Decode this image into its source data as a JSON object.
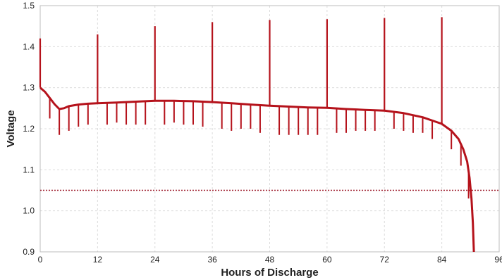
{
  "chart_data": {
    "type": "line",
    "title": "",
    "xlabel": "Hours of Discharge",
    "ylabel": "Voltage",
    "xlim": [
      0,
      96
    ],
    "ylim": [
      0.9,
      1.5
    ],
    "x_ticks": [
      0,
      12,
      24,
      36,
      48,
      60,
      72,
      84,
      96
    ],
    "x_tick_labels": [
      "0",
      "12",
      "24",
      "36",
      "48",
      "60",
      "72",
      "84",
      "96"
    ],
    "y_ticks": [
      0.9,
      1.0,
      1.1,
      1.2,
      1.3,
      1.4,
      1.5
    ],
    "y_tick_labels": [
      "0.9",
      "1.0",
      "1.1",
      "1.2",
      "1.3",
      "1.4",
      "1.5"
    ],
    "grid": true,
    "series_color": "#b5121b",
    "cutoff_color": "#9e1b2b",
    "baseline_points": [
      [
        0,
        1.3
      ],
      [
        1,
        1.29
      ],
      [
        2,
        1.275
      ],
      [
        3,
        1.26
      ],
      [
        4,
        1.248
      ],
      [
        5,
        1.25
      ],
      [
        6,
        1.255
      ],
      [
        8,
        1.259
      ],
      [
        10,
        1.261
      ],
      [
        12,
        1.262
      ],
      [
        16,
        1.264
      ],
      [
        20,
        1.266
      ],
      [
        24,
        1.268
      ],
      [
        28,
        1.268
      ],
      [
        32,
        1.267
      ],
      [
        36,
        1.265
      ],
      [
        40,
        1.262
      ],
      [
        44,
        1.259
      ],
      [
        48,
        1.256
      ],
      [
        52,
        1.254
      ],
      [
        56,
        1.252
      ],
      [
        60,
        1.251
      ],
      [
        64,
        1.248
      ],
      [
        68,
        1.246
      ],
      [
        72,
        1.244
      ],
      [
        76,
        1.238
      ],
      [
        80,
        1.228
      ],
      [
        84,
        1.212
      ],
      [
        86,
        1.195
      ],
      [
        87.5,
        1.175
      ],
      [
        88.5,
        1.15
      ],
      [
        89.3,
        1.12
      ],
      [
        89.8,
        1.08
      ],
      [
        90.2,
        1.03
      ],
      [
        90.5,
        0.97
      ],
      [
        90.7,
        0.9
      ]
    ],
    "high_spikes": [
      {
        "x": 0,
        "y": 1.42
      },
      {
        "x": 12,
        "y": 1.43
      },
      {
        "x": 24,
        "y": 1.45
      },
      {
        "x": 36,
        "y": 1.46
      },
      {
        "x": 48,
        "y": 1.465
      },
      {
        "x": 60,
        "y": 1.467
      },
      {
        "x": 72,
        "y": 1.47
      },
      {
        "x": 84,
        "y": 1.472
      }
    ],
    "low_dips": [
      {
        "x": 2,
        "y": 1.225
      },
      {
        "x": 4,
        "y": 1.185
      },
      {
        "x": 6,
        "y": 1.195
      },
      {
        "x": 8,
        "y": 1.205
      },
      {
        "x": 10,
        "y": 1.21
      },
      {
        "x": 14,
        "y": 1.21
      },
      {
        "x": 16,
        "y": 1.215
      },
      {
        "x": 18,
        "y": 1.21
      },
      {
        "x": 20,
        "y": 1.21
      },
      {
        "x": 22,
        "y": 1.21
      },
      {
        "x": 26,
        "y": 1.21
      },
      {
        "x": 28,
        "y": 1.215
      },
      {
        "x": 30,
        "y": 1.21
      },
      {
        "x": 32,
        "y": 1.21
      },
      {
        "x": 34,
        "y": 1.205
      },
      {
        "x": 38,
        "y": 1.2
      },
      {
        "x": 40,
        "y": 1.195
      },
      {
        "x": 42,
        "y": 1.2
      },
      {
        "x": 44,
        "y": 1.2
      },
      {
        "x": 46,
        "y": 1.19
      },
      {
        "x": 50,
        "y": 1.185
      },
      {
        "x": 52,
        "y": 1.185
      },
      {
        "x": 54,
        "y": 1.185
      },
      {
        "x": 56,
        "y": 1.185
      },
      {
        "x": 58,
        "y": 1.185
      },
      {
        "x": 62,
        "y": 1.19
      },
      {
        "x": 64,
        "y": 1.19
      },
      {
        "x": 66,
        "y": 1.195
      },
      {
        "x": 68,
        "y": 1.195
      },
      {
        "x": 70,
        "y": 1.195
      },
      {
        "x": 74,
        "y": 1.2
      },
      {
        "x": 76,
        "y": 1.195
      },
      {
        "x": 78,
        "y": 1.19
      },
      {
        "x": 80,
        "y": 1.19
      },
      {
        "x": 82,
        "y": 1.175
      },
      {
        "x": 86,
        "y": 1.15
      },
      {
        "x": 88,
        "y": 1.11
      },
      {
        "x": 89.6,
        "y": 1.03
      }
    ],
    "reference_line": {
      "y": 1.05,
      "style": "dotted"
    }
  }
}
